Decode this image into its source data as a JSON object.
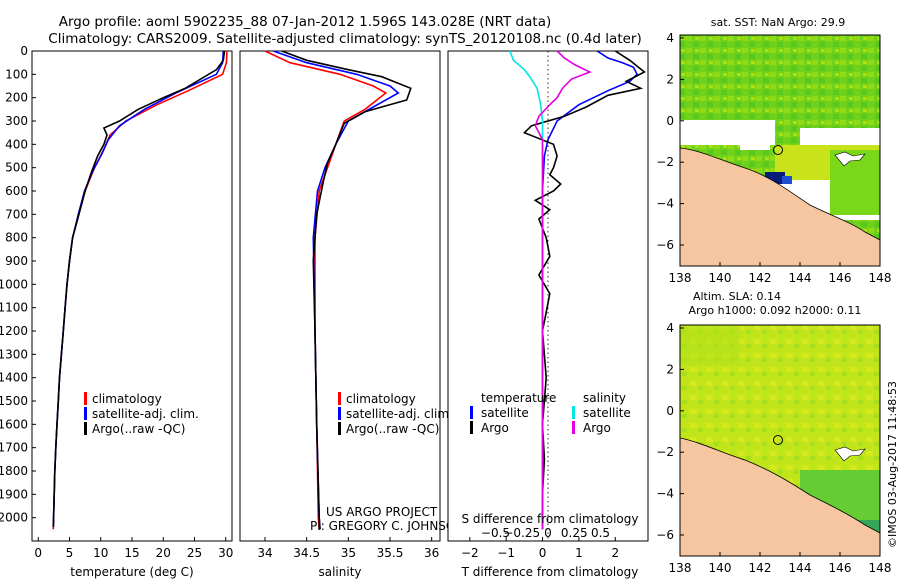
{
  "title": {
    "line1": "Argo profile: aoml 5902235_88 07-Jan-2012 1.596S 143.028E (NRT data)",
    "line2": "Climatology: CARS2009. Satellite-adjusted climatology: synTS_20120108.nc (0.4d later)"
  },
  "timestamp": "©IMOS 03-Aug-2017 11:48:53",
  "credit": {
    "line1": "US ARGO PROJECT",
    "line2": "PI: GREGORY C. JOHNSON"
  },
  "colors": {
    "climatology": "#ff0000",
    "satellite": "#0000ff",
    "argo": "#000000",
    "sal_satellite": "#00e5e5",
    "sal_argo": "#e000e0",
    "land": "#f5c6a0"
  },
  "chart_data": [
    {
      "id": "temperature",
      "type": "line",
      "xlabel": "temperature (deg C)",
      "ylabel": "",
      "xlim": [
        -1,
        31
      ],
      "ylim": [
        2100,
        0
      ],
      "xticks": [
        0,
        5,
        10,
        15,
        20,
        25,
        30
      ],
      "xtick_labels": [
        "0",
        "5",
        "10",
        "15",
        "20",
        "25",
        "30"
      ],
      "yticks": [
        0,
        100,
        200,
        300,
        400,
        500,
        600,
        700,
        800,
        900,
        1000,
        1100,
        1200,
        1300,
        1400,
        1500,
        1600,
        1700,
        1800,
        1900,
        2000
      ],
      "ytick_labels": [
        "0",
        "100",
        "200",
        "300",
        "400",
        "500",
        "600",
        "700",
        "800",
        "900",
        "1000",
        "1100",
        "1200",
        "1300",
        "1400",
        "1500",
        "1600",
        "1700",
        "1800",
        "1900",
        "2000"
      ],
      "legend": [
        "climatology",
        "satellite-adj. clim.",
        "Argo(..raw -QC)"
      ],
      "series": [
        {
          "name": "climatology",
          "color": "#ff0000",
          "points": [
            [
              30.2,
              0
            ],
            [
              30.1,
              50
            ],
            [
              29.5,
              100
            ],
            [
              24,
              170
            ],
            [
              19,
              230
            ],
            [
              14,
              300
            ],
            [
              11.5,
              360
            ],
            [
              10.5,
              420
            ],
            [
              9,
              500
            ],
            [
              7.5,
              600
            ],
            [
              6.5,
              700
            ],
            [
              5.5,
              800
            ],
            [
              5,
              900
            ],
            [
              4.6,
              1000
            ],
            [
              4.3,
              1100
            ],
            [
              4,
              1200
            ],
            [
              3.7,
              1300
            ],
            [
              3.4,
              1400
            ],
            [
              3.2,
              1500
            ],
            [
              3,
              1600
            ],
            [
              2.8,
              1700
            ],
            [
              2.65,
              1800
            ],
            [
              2.55,
              1900
            ],
            [
              2.45,
              2000
            ],
            [
              2.4,
              2050
            ]
          ]
        },
        {
          "name": "satellite-adj. clim.",
          "color": "#0000ff",
          "points": [
            [
              29.6,
              0
            ],
            [
              29.5,
              50
            ],
            [
              28.5,
              100
            ],
            [
              22,
              180
            ],
            [
              17,
              250
            ],
            [
              13,
              320
            ],
            [
              11.2,
              380
            ],
            [
              10.2,
              440
            ],
            [
              8.8,
              510
            ],
            [
              7.4,
              600
            ],
            [
              6.4,
              700
            ],
            [
              5.5,
              800
            ],
            [
              5,
              900
            ],
            [
              4.6,
              1000
            ],
            [
              4.3,
              1100
            ],
            [
              4,
              1200
            ],
            [
              3.7,
              1300
            ],
            [
              3.4,
              1400
            ],
            [
              3.2,
              1500
            ],
            [
              3,
              1600
            ],
            [
              2.8,
              1700
            ],
            [
              2.65,
              1800
            ],
            [
              2.55,
              1900
            ],
            [
              2.45,
              2000
            ],
            [
              2.4,
              2040
            ]
          ]
        },
        {
          "name": "Argo(..raw -QC)",
          "color": "#000000",
          "points": [
            [
              29.8,
              0
            ],
            [
              29.6,
              40
            ],
            [
              28.5,
              80
            ],
            [
              26,
              120
            ],
            [
              23.5,
              160
            ],
            [
              20,
              200
            ],
            [
              16,
              250
            ],
            [
              13,
              300
            ],
            [
              10.5,
              330
            ],
            [
              11,
              360
            ],
            [
              10.5,
              400
            ],
            [
              9.5,
              450
            ],
            [
              8.5,
              520
            ],
            [
              7.5,
              600
            ],
            [
              6.5,
              700
            ],
            [
              5.5,
              800
            ],
            [
              5,
              900
            ],
            [
              4.6,
              1000
            ],
            [
              4.3,
              1100
            ],
            [
              4,
              1200
            ],
            [
              3.7,
              1300
            ],
            [
              3.4,
              1400
            ],
            [
              3.2,
              1500
            ],
            [
              3,
              1600
            ],
            [
              2.8,
              1700
            ],
            [
              2.65,
              1800
            ],
            [
              2.55,
              1900
            ],
            [
              2.45,
              2000
            ],
            [
              2.4,
              2040
            ]
          ]
        }
      ]
    },
    {
      "id": "salinity",
      "type": "line",
      "xlabel": "salinity",
      "xlim": [
        33.7,
        36.1
      ],
      "ylim": [
        2100,
        0
      ],
      "xticks": [
        34,
        34.5,
        35,
        35.5,
        36
      ],
      "xtick_labels": [
        "34",
        "34.5",
        "35",
        "35.5",
        "36"
      ],
      "legend": [
        "climatology",
        "satellite-adj. clim.",
        "Argo(..raw -QC)"
      ],
      "series": [
        {
          "name": "climatology",
          "color": "#ff0000",
          "points": [
            [
              34.0,
              0
            ],
            [
              34.3,
              50
            ],
            [
              34.9,
              100
            ],
            [
              35.3,
              150
            ],
            [
              35.45,
              180
            ],
            [
              35.2,
              250
            ],
            [
              34.95,
              300
            ],
            [
              34.85,
              400
            ],
            [
              34.75,
              500
            ],
            [
              34.65,
              600
            ],
            [
              34.6,
              800
            ],
            [
              34.6,
              1200
            ],
            [
              34.62,
              1600
            ],
            [
              34.64,
              2000
            ],
            [
              34.65,
              2050
            ]
          ]
        },
        {
          "name": "satellite-adj. clim.",
          "color": "#0000ff",
          "points": [
            [
              34.1,
              0
            ],
            [
              34.5,
              50
            ],
            [
              35.1,
              100
            ],
            [
              35.5,
              150
            ],
            [
              35.6,
              180
            ],
            [
              35.3,
              240
            ],
            [
              35.0,
              300
            ],
            [
              34.85,
              400
            ],
            [
              34.72,
              500
            ],
            [
              34.63,
              600
            ],
            [
              34.58,
              800
            ],
            [
              34.6,
              1200
            ],
            [
              34.62,
              1600
            ],
            [
              34.65,
              2000
            ],
            [
              34.66,
              2050
            ]
          ]
        },
        {
          "name": "Argo(..raw -QC)",
          "color": "#000000",
          "points": [
            [
              34.2,
              0
            ],
            [
              34.5,
              40
            ],
            [
              35.0,
              80
            ],
            [
              35.4,
              110
            ],
            [
              35.75,
              160
            ],
            [
              35.7,
              210
            ],
            [
              35.2,
              260
            ],
            [
              34.95,
              310
            ],
            [
              34.85,
              400
            ],
            [
              34.75,
              480
            ],
            [
              34.7,
              560
            ],
            [
              34.62,
              700
            ],
            [
              34.58,
              900
            ],
            [
              34.6,
              1200
            ],
            [
              34.62,
              1600
            ],
            [
              34.65,
              2000
            ],
            [
              34.66,
              2050
            ]
          ]
        }
      ]
    },
    {
      "id": "differences",
      "type": "line",
      "xlabel": "T difference from climatology",
      "xlabel_top": "S difference from climatology",
      "xlim": [
        -2.6,
        2.9
      ],
      "ylim": [
        2100,
        0
      ],
      "xticks": [
        -2,
        -1,
        0,
        1,
        2
      ],
      "xtick_labels": [
        "−2",
        "−1",
        "0",
        "1",
        "2"
      ],
      "s_xticks": [
        -0.5,
        -0.25,
        0,
        0.25,
        0.5
      ],
      "s_xtick_labels": [
        "−0.5",
        "−0.25",
        "0",
        "0.25",
        "0.5"
      ],
      "legend_temperature": {
        "title": "temperature",
        "items": [
          "satellite",
          "Argo"
        ]
      },
      "legend_salinity": {
        "title": "salinity",
        "items": [
          "satellite",
          "Argo"
        ]
      },
      "series": [
        {
          "name": "T satellite",
          "color": "#0000ff",
          "points": [
            [
              1.5,
              0
            ],
            [
              1.8,
              30
            ],
            [
              2.2,
              50
            ],
            [
              2.5,
              70
            ],
            [
              2.6,
              100
            ],
            [
              2.4,
              130
            ],
            [
              1.8,
              170
            ],
            [
              1.0,
              230
            ],
            [
              0.4,
              300
            ],
            [
              0.15,
              380
            ],
            [
              0.05,
              450
            ],
            [
              0,
              600
            ],
            [
              0,
              1000
            ],
            [
              0,
              2050
            ]
          ]
        },
        {
          "name": "T Argo",
          "color": "#000000",
          "points": [
            [
              2.0,
              0
            ],
            [
              2.4,
              40
            ],
            [
              2.8,
              90
            ],
            [
              2.3,
              130
            ],
            [
              2.7,
              160
            ],
            [
              1.8,
              190
            ],
            [
              1.2,
              240
            ],
            [
              0.6,
              280
            ],
            [
              -0.3,
              320
            ],
            [
              -0.5,
              350
            ],
            [
              0.3,
              400
            ],
            [
              0.4,
              450
            ],
            [
              0.3,
              500
            ],
            [
              0.2,
              530
            ],
            [
              0.5,
              570
            ],
            [
              0.3,
              600
            ],
            [
              -0.2,
              640
            ],
            [
              0.2,
              680
            ],
            [
              -0.1,
              720
            ],
            [
              0.1,
              800
            ],
            [
              0.2,
              880
            ],
            [
              -0.1,
              960
            ],
            [
              0.2,
              1040
            ],
            [
              0.1,
              1120
            ],
            [
              0,
              1200
            ],
            [
              0.1,
              1400
            ],
            [
              0,
              1600
            ],
            [
              0.05,
              1750
            ],
            [
              0,
              1900
            ],
            [
              0,
              2050
            ]
          ]
        },
        {
          "name": "S satellite",
          "color": "#00e5e5",
          "points": [
            [
              -0.9,
              0
            ],
            [
              -0.8,
              40
            ],
            [
              -0.5,
              80
            ],
            [
              -0.35,
              110
            ],
            [
              -0.15,
              160
            ],
            [
              -0.05,
              230
            ],
            [
              0,
              300
            ],
            [
              0,
              500
            ],
            [
              0,
              1000
            ],
            [
              0,
              2050
            ]
          ]
        },
        {
          "name": "S Argo",
          "color": "#e000e0",
          "points": [
            [
              0.4,
              0
            ],
            [
              0.6,
              30
            ],
            [
              0.9,
              60
            ],
            [
              1.3,
              90
            ],
            [
              0.8,
              120
            ],
            [
              0.55,
              160
            ],
            [
              0.4,
              200
            ],
            [
              0.2,
              230
            ],
            [
              -0.1,
              280
            ],
            [
              -0.2,
              320
            ],
            [
              0,
              380
            ],
            [
              0,
              1000
            ],
            [
              0,
              2050
            ]
          ]
        }
      ]
    }
  ],
  "maps": [
    {
      "id": "sst-map",
      "title": "sat. SST: NaN Argo: 29.9",
      "title_line2": "",
      "xticks": [
        "138",
        "140",
        "142",
        "144",
        "146",
        "148"
      ],
      "yticks": [
        "4",
        "2",
        "0",
        "−2",
        "−4",
        "−6"
      ]
    },
    {
      "id": "sla-map",
      "title": "Altim. SLA: 0.14",
      "title_line2": "Argo h1000: 0.092 h2000: 0.11",
      "xticks": [
        "138",
        "140",
        "142",
        "144",
        "146",
        "148"
      ],
      "yticks": [
        "4",
        "2",
        "0",
        "−2",
        "−4",
        "−6"
      ]
    }
  ]
}
